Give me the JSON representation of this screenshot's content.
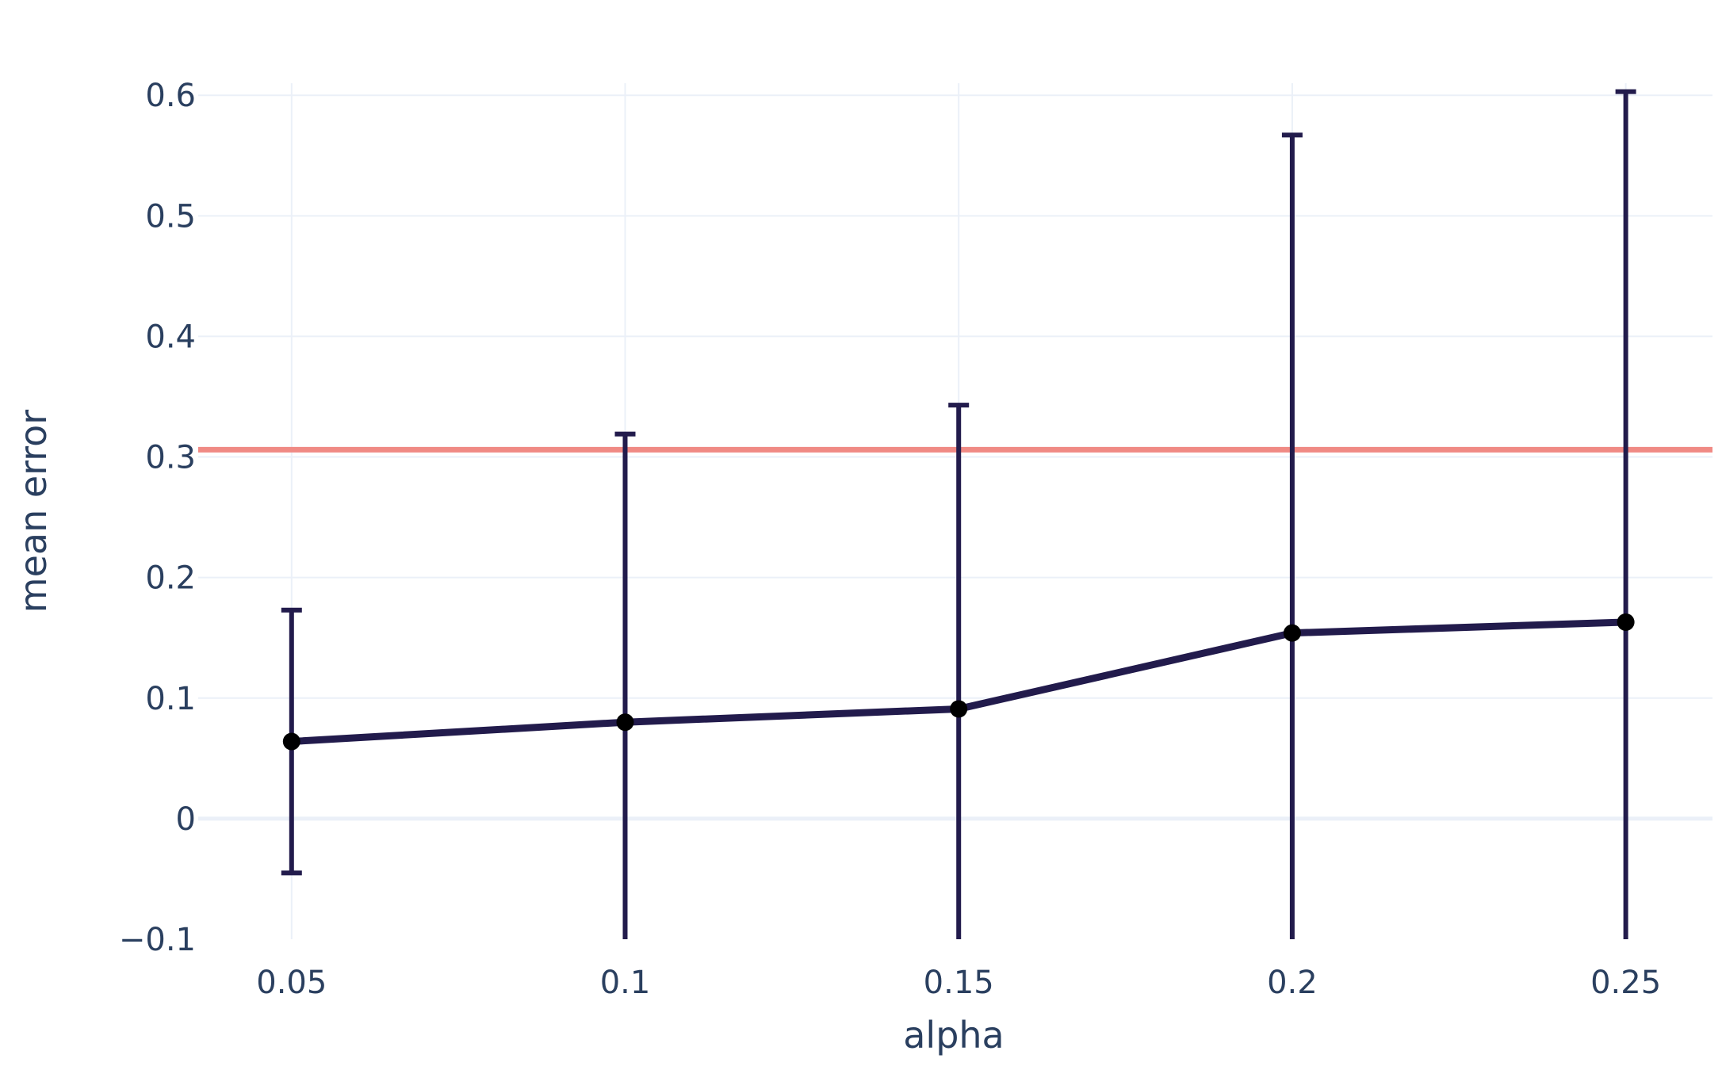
{
  "chart_data": {
    "type": "line",
    "title": "",
    "xlabel": "alpha",
    "ylabel": "mean error",
    "x": [
      0.05,
      0.1,
      0.15,
      0.2,
      0.25
    ],
    "x_tick_labels": [
      "0.05",
      "0.1",
      "0.15",
      "0.2",
      "0.25"
    ],
    "y_tick_values": [
      -0.1,
      0,
      0.1,
      0.2,
      0.3,
      0.4,
      0.5,
      0.6
    ],
    "y_tick_labels": [
      "−0.1",
      "0",
      "0.1",
      "0.2",
      "0.3",
      "0.4",
      "0.5",
      "0.6"
    ],
    "xlim": [
      0.036,
      0.263
    ],
    "ylim": [
      -0.1,
      0.61
    ],
    "grid": true,
    "series": [
      {
        "values": [
          0.064,
          0.08,
          0.091,
          0.154,
          0.163
        ],
        "error_upper": [
          0.173,
          0.319,
          0.343,
          0.567,
          0.603
        ],
        "error_lower": [
          -0.045,
          -0.1,
          -0.1,
          -0.1,
          -0.1
        ],
        "color": "#221b4c",
        "marker_color": "#000000"
      }
    ],
    "reference_line": {
      "y": 0.306,
      "color": "#f08a84"
    },
    "colors": {
      "grid": "#ebf0f8",
      "zeroline": "#ebf0f8",
      "text": "#2a3f5f"
    }
  }
}
